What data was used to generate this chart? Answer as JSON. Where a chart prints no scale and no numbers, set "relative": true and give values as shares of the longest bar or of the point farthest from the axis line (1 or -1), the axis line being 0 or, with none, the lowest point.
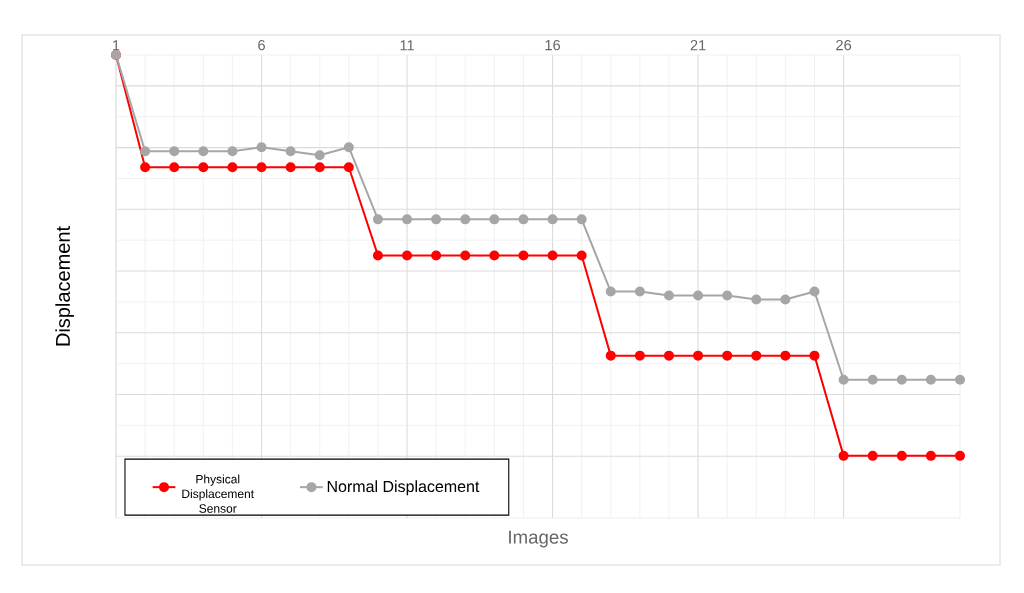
{
  "chart_data": {
    "type": "line",
    "xlabel": "Images",
    "ylabel": "Displacement",
    "relative": true,
    "x": [
      1,
      2,
      3,
      4,
      5,
      6,
      7,
      8,
      9,
      10,
      11,
      12,
      13,
      14,
      15,
      16,
      17,
      18,
      19,
      20,
      21,
      22,
      23,
      24,
      25,
      26,
      27,
      28,
      29,
      30
    ],
    "xlim": [
      1,
      30
    ],
    "xticks": [
      1,
      6,
      11,
      16,
      21,
      26
    ],
    "tick_labels": "x",
    "grid": true,
    "legend": "bottom left",
    "marker": "circle",
    "line_style": "solid",
    "series": [
      {
        "name": "Physical Displacement Sensor",
        "color": "#ff0000",
        "values": [
          0,
          -0.28,
          -0.28,
          -0.28,
          -0.28,
          -0.28,
          -0.28,
          -0.28,
          -0.28,
          -0.5,
          -0.5,
          -0.5,
          -0.5,
          -0.5,
          -0.5,
          -0.5,
          -0.5,
          -0.75,
          -0.75,
          -0.75,
          -0.75,
          -0.75,
          -0.75,
          -0.75,
          -0.75,
          -1,
          -1,
          -1,
          -1,
          -1
        ]
      },
      {
        "name": "Normal Displacement",
        "color": "#a6a6a6",
        "values": [
          0,
          -0.24,
          -0.24,
          -0.24,
          -0.24,
          -0.23,
          -0.24,
          -0.25,
          -0.23,
          -0.41,
          -0.41,
          -0.41,
          -0.41,
          -0.41,
          -0.41,
          -0.41,
          -0.41,
          -0.59,
          -0.59,
          -0.6,
          -0.6,
          -0.6,
          -0.61,
          -0.61,
          -0.59,
          -0.81,
          -0.81,
          -0.81,
          -0.81,
          -0.81
        ]
      }
    ]
  }
}
